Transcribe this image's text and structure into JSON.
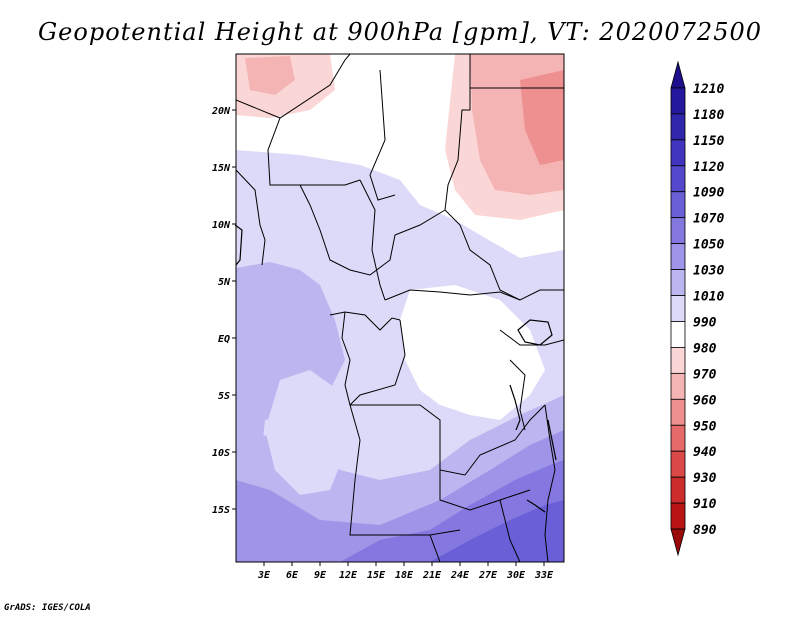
{
  "title": "Geopotential Height at 900hPa [gpm], VT: 2020072500",
  "credit": "GrADS: IGES/COLA",
  "map": {
    "lat_labels": [
      "20N",
      "15N",
      "10N",
      "5N",
      "EQ",
      "5S",
      "10S",
      "15S"
    ],
    "lon_labels": [
      "3E",
      "6E",
      "9E",
      "12E",
      "15E",
      "18E",
      "21E",
      "24E",
      "27E",
      "30E",
      "33E"
    ]
  },
  "colorbar": {
    "levels": [
      "1210",
      "1180",
      "1150",
      "1120",
      "1090",
      "1070",
      "1050",
      "1030",
      "1010",
      "990",
      "980",
      "970",
      "960",
      "950",
      "940",
      "930",
      "910",
      "890"
    ],
    "colors": [
      "#1e0f8c",
      "#24199c",
      "#3026ac",
      "#4134be",
      "#5448cc",
      "#6a5fd6",
      "#8478e0",
      "#9e95e8",
      "#bcb6f0",
      "#dcdaf8",
      "#ffffff",
      "#fbd6d6",
      "#f5b4b4",
      "#ef9090",
      "#e66a6a",
      "#db4848",
      "#cd2c2c",
      "#b81414",
      "#9b0a0a"
    ]
  }
}
